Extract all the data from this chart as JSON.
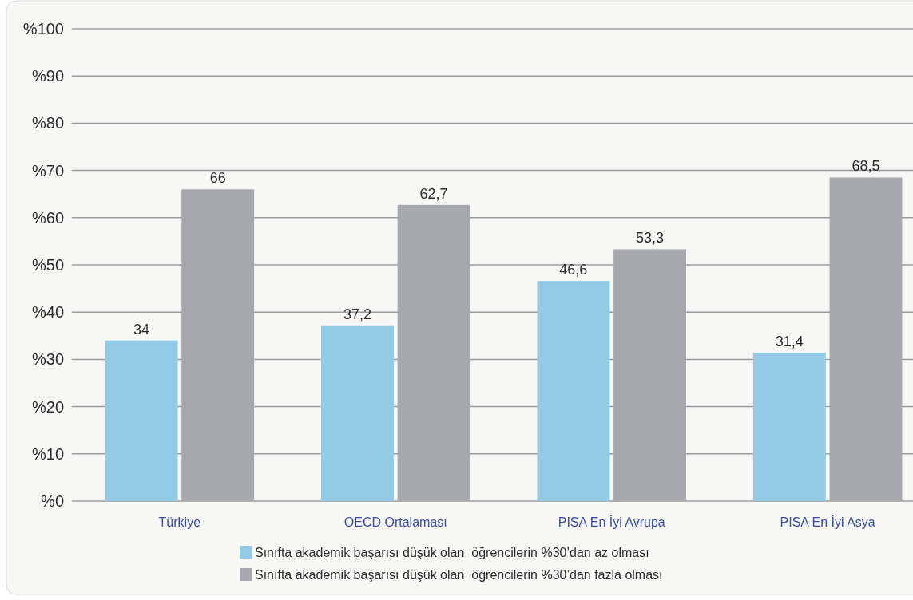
{
  "chart_data": {
    "type": "bar",
    "categories": [
      "Türkiye",
      "OECD Ortalaması",
      "PISA En İyi Avrupa",
      "PISA En İyi Asya"
    ],
    "series": [
      {
        "name": "Sınıfta akademik başarısı düşük olan  öğrencilerin %30’dan az olması",
        "color": "#93cae6",
        "values": [
          34,
          37.2,
          46.6,
          31.4
        ],
        "value_labels": [
          "34",
          "37,2",
          "46,6",
          "31,4"
        ]
      },
      {
        "name": "Sınıfta akademik başarısı düşük olan  öğrencilerin %30’dan fazla olması",
        "color": "#a7a8ac",
        "values": [
          66,
          62.7,
          53.3,
          68.5
        ],
        "value_labels": [
          "66",
          "62,7",
          "53,3",
          "68,5"
        ]
      }
    ],
    "ylim": [
      0,
      100
    ],
    "yticks": [
      {
        "value": 0,
        "label": "%0"
      },
      {
        "value": 10,
        "label": "%10"
      },
      {
        "value": 20,
        "label": "%20"
      },
      {
        "value": 30,
        "label": "%30"
      },
      {
        "value": 40,
        "label": "%40"
      },
      {
        "value": 50,
        "label": "%50"
      },
      {
        "value": 60,
        "label": "%60"
      },
      {
        "value": 70,
        "label": "%70"
      },
      {
        "value": 80,
        "label": "%80"
      },
      {
        "value": 90,
        "label": "%90"
      },
      {
        "value": 100,
        "label": "%100"
      }
    ],
    "grid": "y",
    "legend": "bottom"
  }
}
